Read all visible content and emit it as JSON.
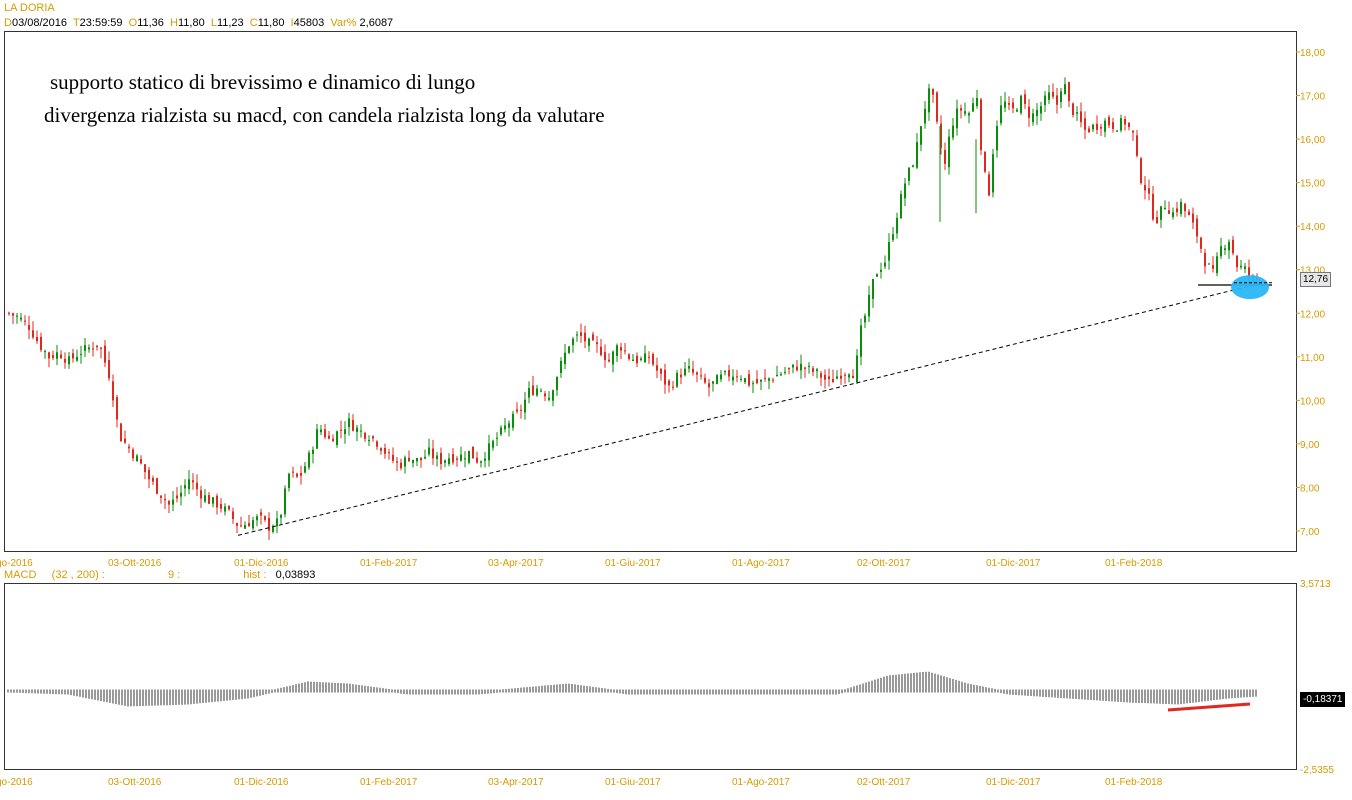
{
  "header": {
    "symbol": "LA DORIA",
    "d_label": "D",
    "d_value": "03/08/2016",
    "t_label": "T",
    "t_value": "23:59:59",
    "o_label": "O",
    "o_value": "11,36",
    "h_label": "H",
    "h_value": "11,80",
    "l_label": "L",
    "l_value": "11,23",
    "c_label": "C",
    "c_value": "11,80",
    "i_label": "I",
    "i_value": "45803",
    "var_label": "Var%",
    "var_value": "2,6087"
  },
  "annotations": {
    "line1": "supporto statico di brevissimo e dinamico di lungo",
    "line2": "divergenza rialzista su macd, con candela rialzista long da valutare"
  },
  "macd_header": {
    "name": "MACD",
    "params": "(32 , 200) :",
    "signal": "9 :",
    "hist_label": "hist :",
    "hist_value": "0,03893"
  },
  "price_tag": "12,76",
  "macd_tag": "-0,18371",
  "macd_axis": {
    "top": "3,5713",
    "bottom": "-2,5355"
  },
  "colors": {
    "bull": "#0a8f0a",
    "bear": "#e0281e",
    "axis": "#d79b00",
    "ellipse": "#29b6f6",
    "diverge": "#e0281e"
  },
  "chart_data": {
    "type": "candlestick",
    "symbol": "LA DORIA",
    "y_ticks": [
      "7,00",
      "8,00",
      "9,00",
      "10,00",
      "11,00",
      "12,00",
      "13,00",
      "14,00",
      "15,00",
      "16,00",
      "17,00",
      "18,00"
    ],
    "ylim": [
      6.5,
      18.5
    ],
    "x_labels": [
      "go-2016",
      "03-Ott-2016",
      "01-Dic-2016",
      "01-Feb-2017",
      "03-Apr-2017",
      "01-Giu-2017",
      "01-Ago-2017",
      "02-Ott-2017",
      "01-Dic-2017",
      "01-Feb-2018"
    ],
    "close_path": [
      [
        0,
        12.0
      ],
      [
        10,
        11.9
      ],
      [
        20,
        11.7
      ],
      [
        30,
        11.3
      ],
      [
        40,
        11.0
      ],
      [
        50,
        11.1
      ],
      [
        60,
        10.9
      ],
      [
        70,
        11.1
      ],
      [
        80,
        11.2
      ],
      [
        90,
        11.3
      ],
      [
        100,
        10.6
      ],
      [
        105,
        10.0
      ],
      [
        110,
        9.2
      ],
      [
        120,
        8.9
      ],
      [
        130,
        8.6
      ],
      [
        140,
        8.2
      ],
      [
        150,
        7.9
      ],
      [
        160,
        7.6
      ],
      [
        170,
        7.8
      ],
      [
        180,
        8.2
      ],
      [
        190,
        7.9
      ],
      [
        200,
        7.7
      ],
      [
        210,
        7.6
      ],
      [
        220,
        7.4
      ],
      [
        230,
        7.1
      ],
      [
        240,
        7.2
      ],
      [
        250,
        7.3
      ],
      [
        260,
        7.1
      ],
      [
        270,
        7.2
      ],
      [
        280,
        8.3
      ],
      [
        290,
        8.2
      ],
      [
        300,
        8.7
      ],
      [
        310,
        9.4
      ],
      [
        320,
        9.1
      ],
      [
        330,
        9.3
      ],
      [
        340,
        9.5
      ],
      [
        350,
        9.3
      ],
      [
        360,
        9.2
      ],
      [
        370,
        9.0
      ],
      [
        380,
        8.7
      ],
      [
        390,
        8.5
      ],
      [
        400,
        8.7
      ],
      [
        410,
        8.6
      ],
      [
        420,
        8.8
      ],
      [
        430,
        8.6
      ],
      [
        440,
        8.7
      ],
      [
        450,
        8.7
      ],
      [
        460,
        8.8
      ],
      [
        470,
        8.6
      ],
      [
        480,
        8.9
      ],
      [
        490,
        9.2
      ],
      [
        500,
        9.5
      ],
      [
        510,
        9.7
      ],
      [
        520,
        10.2
      ],
      [
        530,
        10.3
      ],
      [
        540,
        10.1
      ],
      [
        550,
        10.7
      ],
      [
        560,
        11.3
      ],
      [
        570,
        11.5
      ],
      [
        580,
        11.3
      ],
      [
        590,
        11.2
      ],
      [
        600,
        10.9
      ],
      [
        610,
        11.3
      ],
      [
        620,
        11.0
      ],
      [
        630,
        10.9
      ],
      [
        640,
        11.0
      ],
      [
        650,
        10.6
      ],
      [
        660,
        10.3
      ],
      [
        670,
        10.6
      ],
      [
        680,
        10.7
      ],
      [
        690,
        10.5
      ],
      [
        700,
        10.3
      ],
      [
        710,
        10.5
      ],
      [
        720,
        10.6
      ],
      [
        730,
        10.6
      ],
      [
        740,
        10.4
      ],
      [
        750,
        10.4
      ],
      [
        760,
        10.5
      ],
      [
        770,
        10.6
      ],
      [
        780,
        10.7
      ],
      [
        790,
        10.8
      ],
      [
        800,
        10.7
      ],
      [
        810,
        10.6
      ],
      [
        820,
        10.4
      ],
      [
        830,
        10.6
      ],
      [
        840,
        10.7
      ],
      [
        846,
        10.6
      ],
      [
        852,
        11.6
      ],
      [
        858,
        12.1
      ],
      [
        866,
        12.9
      ],
      [
        876,
        13.2
      ],
      [
        886,
        14.1
      ],
      [
        896,
        15.0
      ],
      [
        906,
        15.6
      ],
      [
        914,
        16.6
      ],
      [
        922,
        17.2
      ],
      [
        930,
        16.0
      ],
      [
        936,
        15.4
      ],
      [
        942,
        16.3
      ],
      [
        950,
        16.7
      ],
      [
        960,
        16.6
      ],
      [
        968,
        17.0
      ],
      [
        974,
        15.3
      ],
      [
        980,
        14.8
      ],
      [
        986,
        16.2
      ],
      [
        994,
        16.9
      ],
      [
        1002,
        16.6
      ],
      [
        1012,
        16.9
      ],
      [
        1022,
        16.5
      ],
      [
        1030,
        16.7
      ],
      [
        1040,
        17.0
      ],
      [
        1048,
        16.8
      ],
      [
        1054,
        17.4
      ],
      [
        1060,
        16.8
      ],
      [
        1068,
        16.5
      ],
      [
        1076,
        16.2
      ],
      [
        1086,
        16.3
      ],
      [
        1096,
        16.4
      ],
      [
        1106,
        16.3
      ],
      [
        1116,
        16.4
      ],
      [
        1124,
        16.1
      ],
      [
        1130,
        15.2
      ],
      [
        1138,
        14.8
      ],
      [
        1146,
        14.1
      ],
      [
        1156,
        14.5
      ],
      [
        1164,
        14.3
      ],
      [
        1172,
        14.5
      ],
      [
        1180,
        14.2
      ],
      [
        1188,
        13.8
      ],
      [
        1196,
        13.2
      ],
      [
        1204,
        12.9
      ],
      [
        1212,
        13.5
      ],
      [
        1220,
        13.7
      ],
      [
        1228,
        13.1
      ],
      [
        1236,
        13.0
      ],
      [
        1242,
        12.8
      ],
      [
        1248,
        12.76
      ]
    ],
    "trendline": {
      "from": [
        230,
        6.9
      ],
      "to": [
        1255,
        12.7
      ],
      "style": "dashed"
    },
    "support_line": {
      "level": 12.65,
      "from": 1198,
      "to": 1272
    },
    "highlight_ellipse": {
      "x": 1250,
      "y": 12.6
    },
    "macd": {
      "axis": {
        "top": "3,5713",
        "bottom": "-2,5355"
      },
      "centers": [
        [
          0,
          0
        ],
        [
          60,
          -0.05
        ],
        [
          120,
          -0.35
        ],
        [
          180,
          -0.3
        ],
        [
          240,
          -0.15
        ],
        [
          300,
          0.2
        ],
        [
          340,
          0.15
        ],
        [
          400,
          -0.05
        ],
        [
          470,
          -0.05
        ],
        [
          560,
          0.15
        ],
        [
          620,
          -0.05
        ],
        [
          700,
          -0.05
        ],
        [
          760,
          -0.05
        ],
        [
          830,
          -0.05
        ],
        [
          880,
          0.35
        ],
        [
          920,
          0.45
        ],
        [
          960,
          0.15
        ],
        [
          1000,
          -0.05
        ],
        [
          1060,
          -0.15
        ],
        [
          1120,
          -0.25
        ],
        [
          1170,
          -0.3
        ],
        [
          1220,
          -0.15
        ],
        [
          1250,
          -0.1
        ]
      ],
      "divergence_line": {
        "from": [
          1168,
          -0.65
        ],
        "to": [
          1250,
          -0.35
        ]
      }
    }
  }
}
